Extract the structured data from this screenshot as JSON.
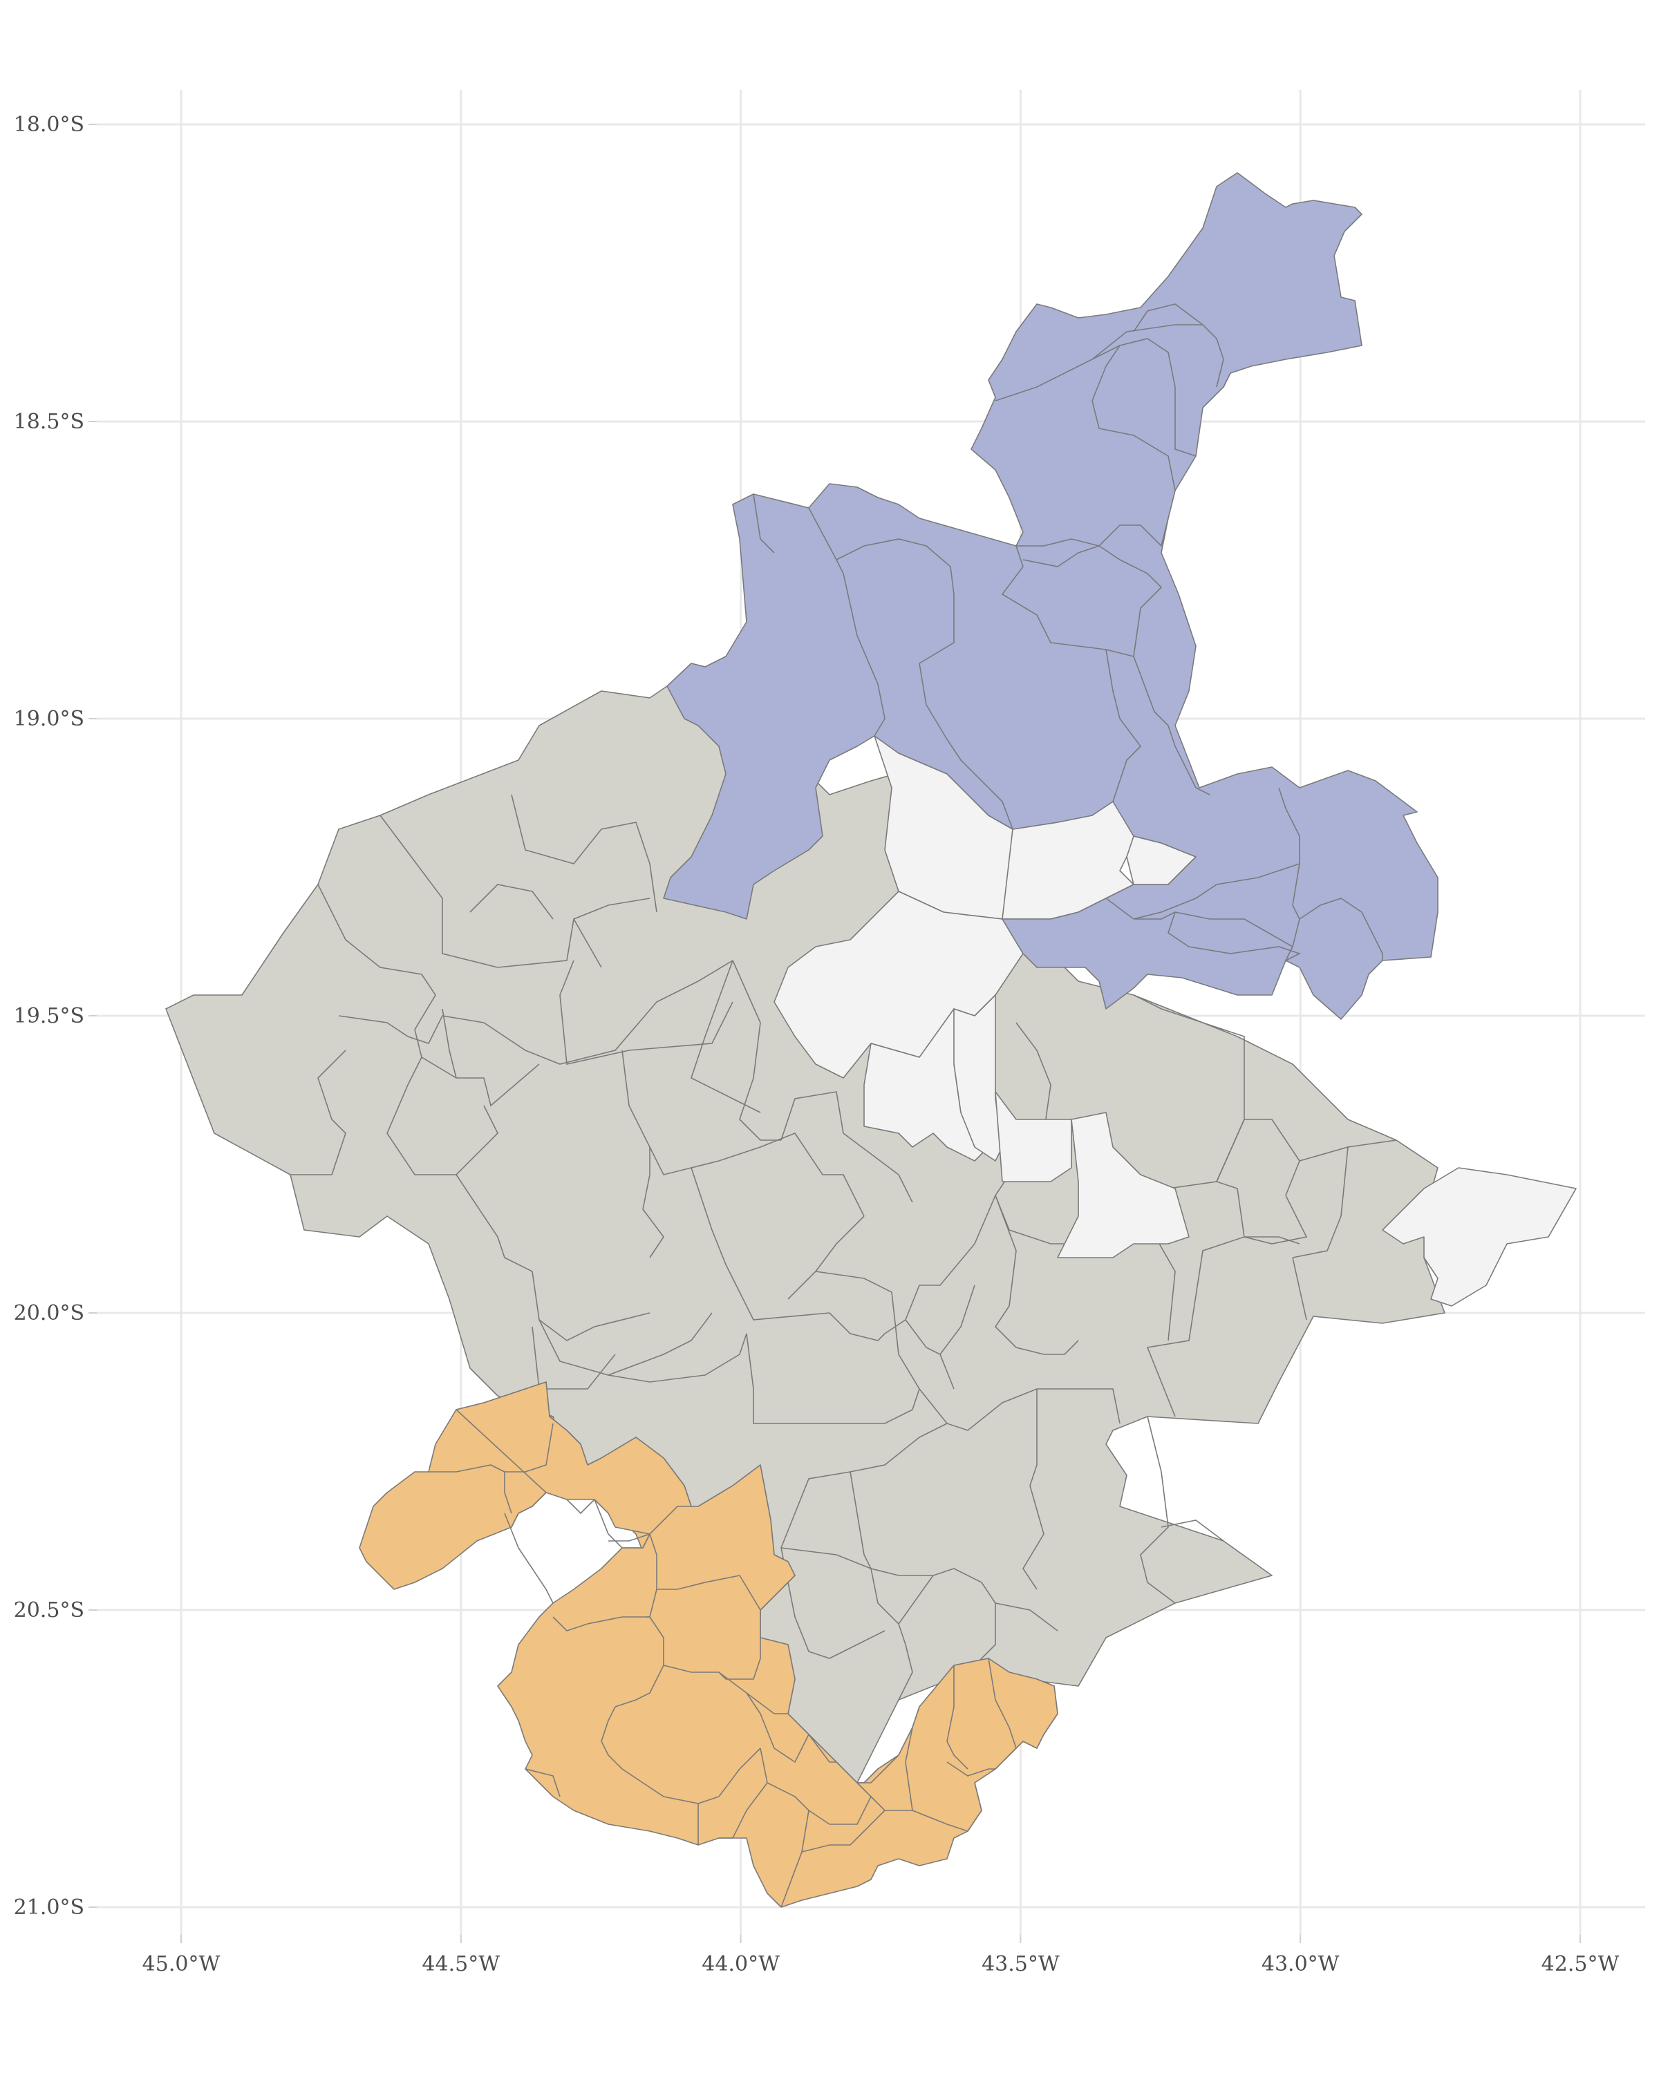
{
  "map": {
    "x_axis": {
      "ticks": [
        {
          "value": -45.0,
          "label": "45.0°W"
        },
        {
          "value": -44.5,
          "label": "44.5°W"
        },
        {
          "value": -44.0,
          "label": "44.0°W"
        },
        {
          "value": -43.5,
          "label": "43.5°W"
        },
        {
          "value": -43.0,
          "label": "43.0°W"
        },
        {
          "value": -42.5,
          "label": "42.5°W"
        }
      ]
    },
    "y_axis": {
      "ticks": [
        {
          "value": -18.0,
          "label": "18.0°S"
        },
        {
          "value": -18.5,
          "label": "18.5°S"
        },
        {
          "value": -19.0,
          "label": "19.0°S"
        },
        {
          "value": -19.5,
          "label": "19.5°S"
        },
        {
          "value": -20.0,
          "label": "20.0°S"
        },
        {
          "value": -20.5,
          "label": "20.5°S"
        },
        {
          "value": -21.0,
          "label": "21.0°S"
        }
      ]
    },
    "grid": true,
    "legend": "none",
    "colors": {
      "north_cluster": "#abb2d6",
      "south_cluster": "#f0c283",
      "unassigned": "#f3f3f3",
      "other": "#d3d3cc",
      "border": "#7a7a7a",
      "grid": "#e8e8e8"
    }
  }
}
